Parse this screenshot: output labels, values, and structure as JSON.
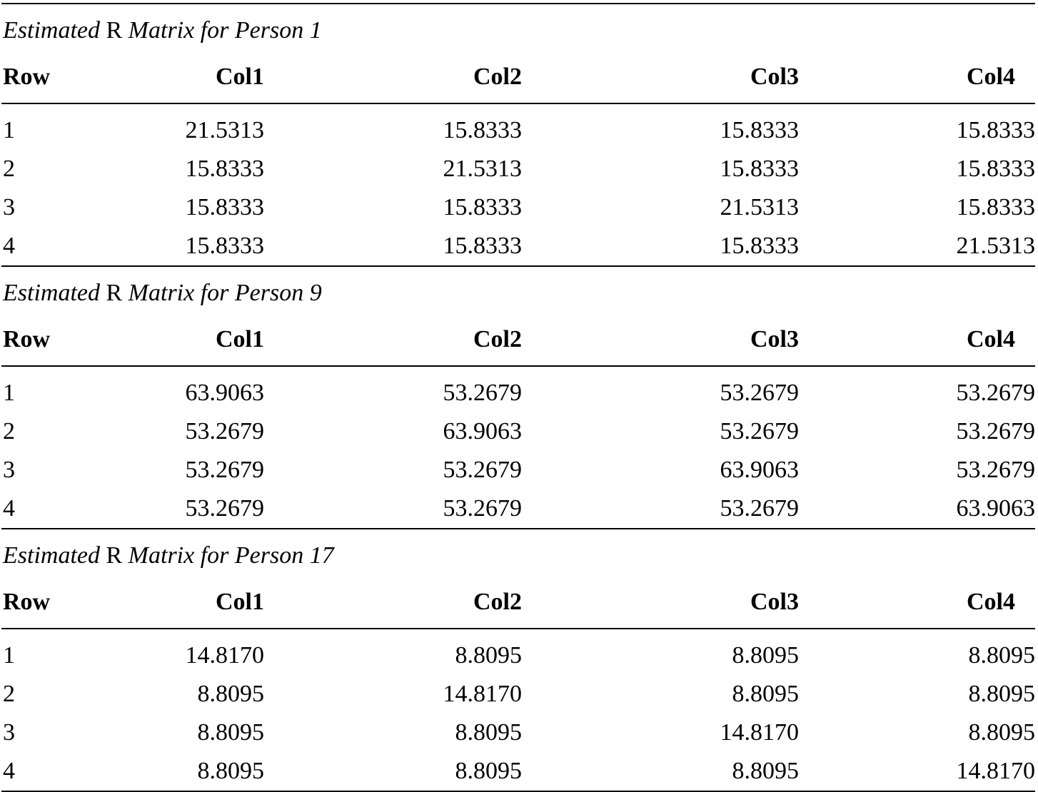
{
  "matrices": [
    {
      "title_prefix": "Estimated",
      "title_symbol": "R",
      "title_suffix": "Matrix for Person 1",
      "headers": [
        "Row",
        "Col1",
        "Col2",
        "Col3",
        "Col4"
      ],
      "rows": [
        [
          "1",
          "21.5313",
          "15.8333",
          "15.8333",
          "15.8333"
        ],
        [
          "2",
          "15.8333",
          "21.5313",
          "15.8333",
          "15.8333"
        ],
        [
          "3",
          "15.8333",
          "15.8333",
          "21.5313",
          "15.8333"
        ],
        [
          "4",
          "15.8333",
          "15.8333",
          "15.8333",
          "21.5313"
        ]
      ]
    },
    {
      "title_prefix": "Estimated",
      "title_symbol": "R",
      "title_suffix": "Matrix for Person 9",
      "headers": [
        "Row",
        "Col1",
        "Col2",
        "Col3",
        "Col4"
      ],
      "rows": [
        [
          "1",
          "63.9063",
          "53.2679",
          "53.2679",
          "53.2679"
        ],
        [
          "2",
          "53.2679",
          "63.9063",
          "53.2679",
          "53.2679"
        ],
        [
          "3",
          "53.2679",
          "53.2679",
          "63.9063",
          "53.2679"
        ],
        [
          "4",
          "53.2679",
          "53.2679",
          "53.2679",
          "63.9063"
        ]
      ]
    },
    {
      "title_prefix": "Estimated",
      "title_symbol": "R",
      "title_suffix": "Matrix for Person 17",
      "headers": [
        "Row",
        "Col1",
        "Col2",
        "Col3",
        "Col4"
      ],
      "rows": [
        [
          "1",
          "14.8170",
          "8.8095",
          "8.8095",
          "8.8095"
        ],
        [
          "2",
          "8.8095",
          "14.8170",
          "8.8095",
          "8.8095"
        ],
        [
          "3",
          "8.8095",
          "8.8095",
          "14.8170",
          "8.8095"
        ],
        [
          "4",
          "8.8095",
          "8.8095",
          "8.8095",
          "14.8170"
        ]
      ]
    }
  ]
}
